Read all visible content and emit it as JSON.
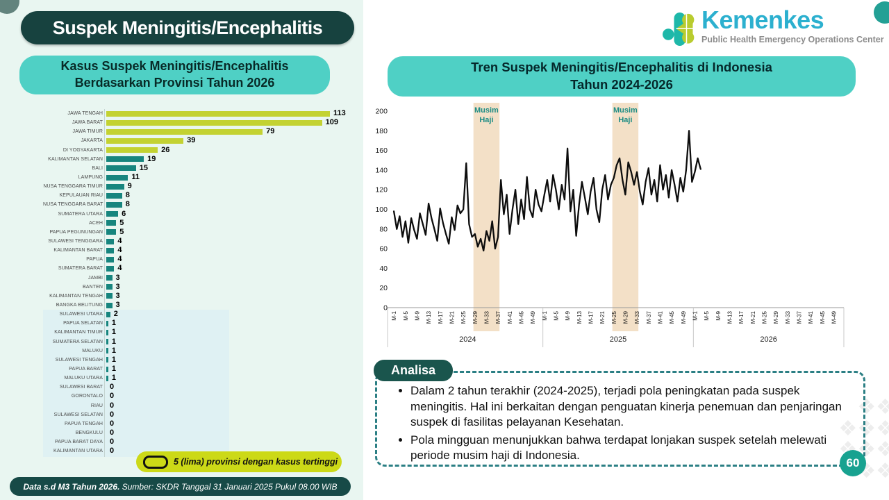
{
  "page_number": "60",
  "main_title": "Suspek Meningitis/Encephalitis",
  "kemenkes": {
    "brand": "Kemenkes",
    "subtitle": "Public Health Emergency Operations Center"
  },
  "left": {
    "chart_title_line1": "Kasus Suspek Meningitis/Encephalitis",
    "chart_title_line2": "Berdasarkan Provinsi Tahun 2026",
    "legend_label": "5 (lima) provinsi dengan kasus tertinggi",
    "footer_bold": "Data s.d M3 Tahun 2026.",
    "footer_rest": " Sumber: SKDR Tanggal 31 Januari 2025 Pukul 08.00 WIB"
  },
  "right": {
    "chart_title_line1": "Tren Suspek Meningitis/Encephalitis di Indonesia",
    "chart_title_line2": "Tahun 2024-2026"
  },
  "analysis": {
    "label": "Analisa",
    "bullets": [
      "Dalam 2 tahun terakhir (2024-2025), terjadi pola peningkatan pada suspek meningitis. Hal ini berkaitan dengan penguatan kinerja penemuan dan penjaringan suspek di fasilitas pelayanan Kesehatan.",
      "Pola mingguan menunjukkan bahwa terdapat lonjakan suspek setelah melewati periode musim haji di Indonesia."
    ]
  },
  "chart_data": [
    {
      "type": "bar",
      "orientation": "horizontal",
      "title": "Kasus Suspek Meningitis/Encephalitis Berdasarkan Provinsi Tahun 2026",
      "categories": [
        "JAWA TENGAH",
        "JAWA BARAT",
        "JAWA TIMUR",
        "JAKARTA",
        "DI YOGYAKARTA",
        "KALIMANTAN SELATAN",
        "BALI",
        "LAMPUNG",
        "NUSA TENGGARA TIMUR",
        "KEPULAUAN RIAU",
        "NUSA TENGGARA BARAT",
        "SUMATERA UTARA",
        "ACEH",
        "PAPUA PEGUNUNGAN",
        "SULAWESI TENGGARA",
        "KALIMANTAN BARAT",
        "PAPUA",
        "SUMATERA BARAT",
        "JAMBI",
        "BANTEN",
        "KALIMANTAN TENGAH",
        "BANGKA BELITUNG",
        "SULAWESI UTARA",
        "PAPUA SELATAN",
        "KALIMANTAN TIMUR",
        "SUMATERA SELATAN",
        "MALUKU",
        "SULAWESI TENGAH",
        "PAPUA BARAT",
        "MALUKU UTARA",
        "SULAWESI BARAT",
        "GORONTALO",
        "RIAU",
        "SULAWESI SELATAN",
        "PAPUA TENGAH",
        "BENGKULU",
        "PAPUA BARAT DAYA",
        "KALIMANTAN UTARA"
      ],
      "values": [
        113,
        109,
        79,
        39,
        26,
        19,
        15,
        11,
        9,
        8,
        8,
        6,
        5,
        5,
        4,
        4,
        4,
        4,
        3,
        3,
        3,
        3,
        2,
        1,
        1,
        1,
        1,
        1,
        1,
        1,
        0,
        0,
        0,
        0,
        0,
        0,
        0,
        0
      ],
      "highlight_top_n": 5,
      "colors": {
        "highlight": "#c3d232",
        "normal": "#17857e"
      },
      "xlim": [
        0,
        120
      ]
    },
    {
      "type": "line",
      "title": "Tren Suspek Meningitis/Encephalitis di Indonesia Tahun 2024-2026",
      "ylim": [
        0,
        200
      ],
      "ytick_step": 20,
      "week_ticks": [
        "M-1",
        "M-5",
        "M-9",
        "M-13",
        "M-17",
        "M-21",
        "M-25",
        "M-29",
        "M-33",
        "M-37",
        "M-41",
        "M-45",
        "M-49"
      ],
      "series": [
        {
          "year": "2024",
          "values": [
            98,
            80,
            93,
            72,
            88,
            66,
            91,
            79,
            70,
            96,
            85,
            74,
            106,
            91,
            80,
            68,
            101,
            86,
            75,
            65,
            92,
            79,
            104,
            96,
            100,
            147,
            85,
            72,
            75,
            62,
            70,
            58,
            78,
            68,
            88,
            60,
            72,
            130,
            95,
            115,
            75,
            100,
            120,
            85,
            110,
            90,
            133,
            100,
            92,
            120,
            105,
            98
          ]
        },
        {
          "year": "2025",
          "values": [
            115,
            130,
            108,
            135,
            120,
            100,
            125,
            110,
            162,
            98,
            120,
            73,
            105,
            128,
            112,
            95,
            118,
            132,
            100,
            87,
            120,
            135,
            110,
            125,
            132,
            145,
            152,
            130,
            115,
            148,
            138,
            125,
            138,
            118,
            105,
            128,
            142,
            115,
            130,
            108,
            145,
            120,
            135,
            112,
            140,
            125,
            108,
            132,
            118,
            140,
            180,
            128
          ]
        },
        {
          "year": "2026",
          "values": [
            138,
            152,
            141
          ]
        }
      ],
      "bands": [
        {
          "year": "2024",
          "from_week": 29,
          "to_week": 37,
          "label_line1": "Musim",
          "label_line2": "Haji",
          "color": "#f3e0c7",
          "label_color": "#1c8c84"
        },
        {
          "year": "2025",
          "from_week": 25,
          "to_week": 33,
          "label_line1": "Musim",
          "label_line2": "Haji",
          "color": "#f3e0c7",
          "label_color": "#1c8c84"
        }
      ],
      "line_color": "#0d0d0d"
    }
  ]
}
